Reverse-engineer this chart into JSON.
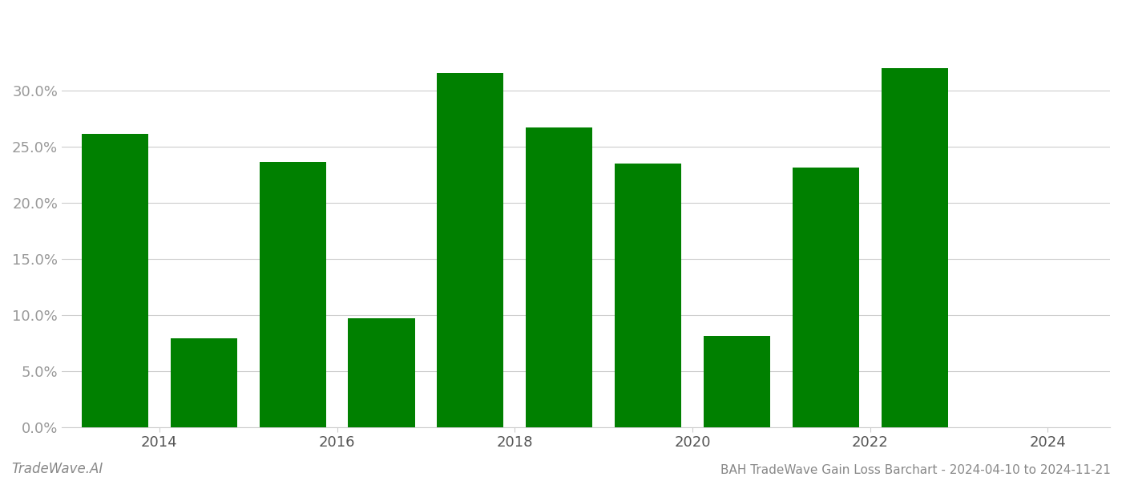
{
  "bar_positions": [
    0,
    1,
    2,
    3,
    4,
    5,
    6,
    7,
    8,
    9
  ],
  "values": [
    0.261,
    0.079,
    0.236,
    0.097,
    0.316,
    0.267,
    0.235,
    0.081,
    0.231,
    0.32
  ],
  "xtick_positions": [
    0.5,
    2.5,
    4.5,
    6.5,
    8.5,
    10.5
  ],
  "xtick_labels": [
    "2014",
    "2016",
    "2018",
    "2020",
    "2022",
    "2024"
  ],
  "bar_color": "#008000",
  "background_color": "#ffffff",
  "grid_color": "#cccccc",
  "ylabel_color": "#999999",
  "xlabel_color": "#555555",
  "title_text": "BAH TradeWave Gain Loss Barchart - 2024-04-10 to 2024-11-21",
  "watermark_text": "TradeWave.AI",
  "ylim": [
    0,
    0.37
  ],
  "yticks": [
    0.0,
    0.05,
    0.1,
    0.15,
    0.2,
    0.25,
    0.3
  ],
  "bar_width": 0.75,
  "tick_fontsize": 13,
  "watermark_fontsize": 12,
  "footer_fontsize": 11,
  "xlim": [
    -0.6,
    11.2
  ]
}
